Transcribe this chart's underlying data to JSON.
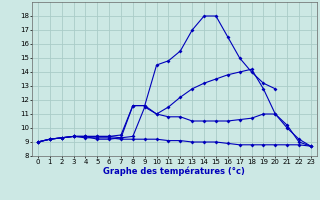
{
  "title": "Graphe des températures (°c)",
  "bg_color": "#cce8e4",
  "grid_color": "#aaccc8",
  "line_color": "#0000bb",
  "xlim": [
    -0.5,
    23.5
  ],
  "ylim": [
    8,
    19
  ],
  "xticks": [
    0,
    1,
    2,
    3,
    4,
    5,
    6,
    7,
    8,
    9,
    10,
    11,
    12,
    13,
    14,
    15,
    16,
    17,
    18,
    19,
    20,
    21,
    22,
    23
  ],
  "yticks": [
    8,
    9,
    10,
    11,
    12,
    13,
    14,
    15,
    16,
    17,
    18
  ],
  "series": [
    [
      9.0,
      9.2,
      9.3,
      9.4,
      9.3,
      9.3,
      9.3,
      9.2,
      9.2,
      9.2,
      9.2,
      9.1,
      9.1,
      9.0,
      9.0,
      9.0,
      8.9,
      8.8,
      8.8,
      8.8,
      8.8,
      8.8,
      8.8,
      8.7
    ],
    [
      9.0,
      9.2,
      9.3,
      9.4,
      9.4,
      9.4,
      9.4,
      9.5,
      11.6,
      11.6,
      11.0,
      10.8,
      10.8,
      10.5,
      10.5,
      10.5,
      10.5,
      10.6,
      10.7,
      11.0,
      11.0,
      10.2,
      9.0,
      8.7
    ],
    [
      9.0,
      9.2,
      9.3,
      9.4,
      9.4,
      9.4,
      9.4,
      9.3,
      9.4,
      11.5,
      11.0,
      11.5,
      12.2,
      12.8,
      13.2,
      13.5,
      13.8,
      14.0,
      14.2,
      12.8,
      11.0,
      10.0,
      9.2,
      8.7
    ],
    [
      9.0,
      9.2,
      9.3,
      9.4,
      9.4,
      9.2,
      9.2,
      9.3,
      11.6,
      11.6,
      14.5,
      14.8,
      15.5,
      17.0,
      18.0,
      18.0,
      16.5,
      15.0,
      14.0,
      13.2,
      12.8,
      null,
      null,
      null
    ]
  ]
}
